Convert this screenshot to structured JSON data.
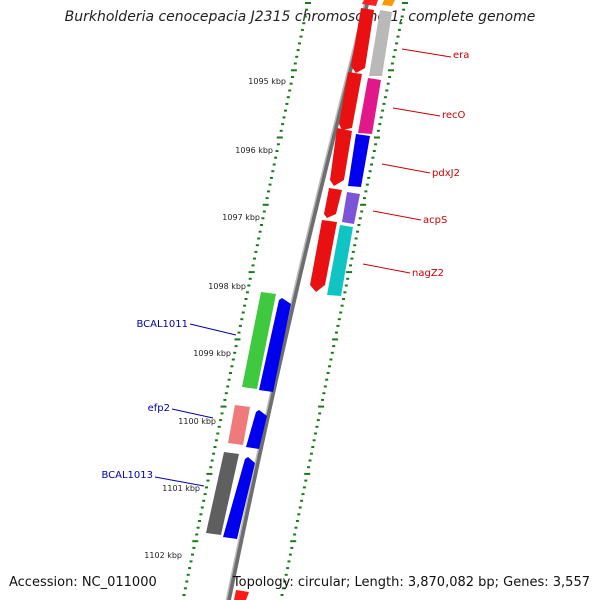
{
  "title": "Burkholderia cenocepacia J2315 chromosome 1, complete genome",
  "footer": {
    "accession": "Accession: NC_011000",
    "summary": "Topology: circular; Length: 3,870,082 bp; Genes: 3,557"
  },
  "colors": {
    "backbone": "#888888",
    "ticks": "#1a7a1a",
    "right_gene_label": "#cc0000",
    "left_gene_label": "#0000aa"
  },
  "ruler": [
    "1095 kbp",
    "1096 kbp",
    "1097 kbp",
    "1098 kbp",
    "1099 kbp",
    "1100 kbp",
    "1101 kbp",
    "1102 kbp"
  ],
  "gene_labels_right": [
    "era",
    "recO",
    "pdxJ2",
    "acpS",
    "nagZ2"
  ],
  "gene_labels_left": [
    "BCAL1011",
    "efp2",
    "BCAL1013"
  ]
}
